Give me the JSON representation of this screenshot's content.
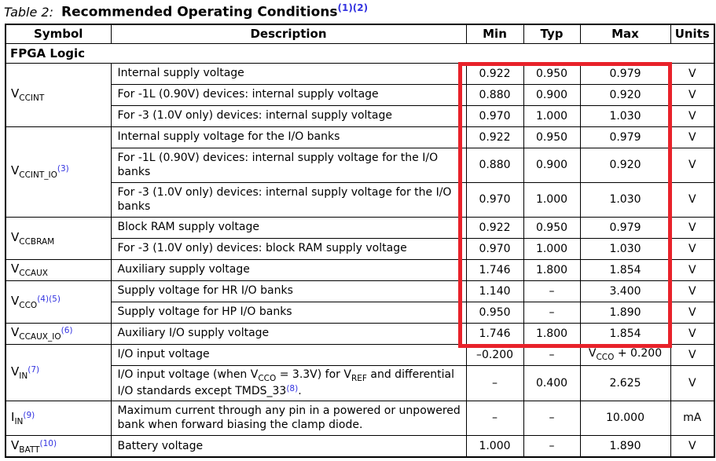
{
  "title": {
    "prefix": "Table 2:",
    "text": "Recommended Operating Conditions",
    "sup": "(1)(2)"
  },
  "colors": {
    "link": "#3333e0",
    "header_rule": "#a50d3f",
    "highlight_box": "#e8222a"
  },
  "annotations": {
    "highlight_box": "red rectangle around Min/Typ/Max values of FPGA supply-voltage rows"
  },
  "table": {
    "headers": [
      "Symbol",
      "Description",
      "Min",
      "Typ",
      "Max",
      "Units"
    ],
    "section_header": "FPGA Logic",
    "groups": [
      {
        "symbol": [
          {
            "t": "V"
          },
          {
            "t": "CCINT",
            "s": "sub"
          }
        ],
        "rows": [
          {
            "desc": [
              {
                "t": "Internal supply voltage"
              }
            ],
            "min": "0.922",
            "typ": "0.950",
            "max": [
              {
                "t": "0.979"
              }
            ],
            "units": "V"
          },
          {
            "desc": [
              {
                "t": "For -1L (0.90V) devices: internal supply voltage"
              }
            ],
            "min": "0.880",
            "typ": "0.900",
            "max": [
              {
                "t": "0.920"
              }
            ],
            "units": "V"
          },
          {
            "desc": [
              {
                "t": "For -3 (1.0V only) devices: internal supply voltage"
              }
            ],
            "min": "0.970",
            "typ": "1.000",
            "max": [
              {
                "t": "1.030"
              }
            ],
            "units": "V"
          }
        ]
      },
      {
        "symbol": [
          {
            "t": "V"
          },
          {
            "t": "CCINT_IO",
            "s": "sub"
          },
          {
            "t": "(3)",
            "s": "sup"
          }
        ],
        "rows": [
          {
            "desc": [
              {
                "t": "Internal supply voltage for the I/O banks"
              }
            ],
            "min": "0.922",
            "typ": "0.950",
            "max": [
              {
                "t": "0.979"
              }
            ],
            "units": "V"
          },
          {
            "desc": [
              {
                "t": "For -1L (0.90V) devices: internal supply voltage for the I/O banks"
              }
            ],
            "min": "0.880",
            "typ": "0.900",
            "max": [
              {
                "t": "0.920"
              }
            ],
            "units": "V"
          },
          {
            "desc": [
              {
                "t": "For -3 (1.0V only) devices: internal supply voltage for the I/O banks"
              }
            ],
            "min": "0.970",
            "typ": "1.000",
            "max": [
              {
                "t": "1.030"
              }
            ],
            "units": "V"
          }
        ]
      },
      {
        "symbol": [
          {
            "t": "V"
          },
          {
            "t": "CCBRAM",
            "s": "sub"
          }
        ],
        "rows": [
          {
            "desc": [
              {
                "t": "Block RAM supply voltage"
              }
            ],
            "min": "0.922",
            "typ": "0.950",
            "max": [
              {
                "t": "0.979"
              }
            ],
            "units": "V"
          },
          {
            "desc": [
              {
                "t": "For -3 (1.0V only) devices: block RAM supply voltage"
              }
            ],
            "min": "0.970",
            "typ": "1.000",
            "max": [
              {
                "t": "1.030"
              }
            ],
            "units": "V"
          }
        ]
      },
      {
        "symbol": [
          {
            "t": "V"
          },
          {
            "t": "CCAUX",
            "s": "sub"
          }
        ],
        "rows": [
          {
            "desc": [
              {
                "t": "Auxiliary supply voltage"
              }
            ],
            "min": "1.746",
            "typ": "1.800",
            "max": [
              {
                "t": "1.854"
              }
            ],
            "units": "V"
          }
        ]
      },
      {
        "symbol": [
          {
            "t": "V"
          },
          {
            "t": "CCO",
            "s": "sub"
          },
          {
            "t": "(4)(5)",
            "s": "sup"
          }
        ],
        "rows": [
          {
            "desc": [
              {
                "t": "Supply voltage for HR I/O banks"
              }
            ],
            "min": "1.140",
            "typ": "–",
            "max": [
              {
                "t": "3.400"
              }
            ],
            "units": "V"
          },
          {
            "desc": [
              {
                "t": "Supply voltage for HP I/O banks"
              }
            ],
            "min": "0.950",
            "typ": "–",
            "max": [
              {
                "t": "1.890"
              }
            ],
            "units": "V"
          }
        ]
      },
      {
        "symbol": [
          {
            "t": "V"
          },
          {
            "t": "CCAUX_IO",
            "s": "sub"
          },
          {
            "t": "(6)",
            "s": "sup"
          }
        ],
        "rows": [
          {
            "desc": [
              {
                "t": "Auxiliary I/O supply voltage"
              }
            ],
            "min": "1.746",
            "typ": "1.800",
            "max": [
              {
                "t": "1.854"
              }
            ],
            "units": "V"
          }
        ]
      },
      {
        "symbol": [
          {
            "t": "V"
          },
          {
            "t": "IN",
            "s": "sub"
          },
          {
            "t": "(7)",
            "s": "sup"
          }
        ],
        "rows": [
          {
            "desc": [
              {
                "t": "I/O input voltage"
              }
            ],
            "min": "–0.200",
            "typ": "–",
            "max": [
              {
                "t": "V"
              },
              {
                "t": "CCO",
                "s": "sub"
              },
              {
                "t": " + 0.200"
              }
            ],
            "units": "V"
          },
          {
            "desc": [
              {
                "t": "I/O input voltage (when V"
              },
              {
                "t": "CCO",
                "s": "sub"
              },
              {
                "t": " = 3.3V) for V"
              },
              {
                "t": "REF",
                "s": "sub"
              },
              {
                "t": " and differential I/O standards except TMDS_33"
              },
              {
                "t": "(8)",
                "s": "sup"
              },
              {
                "t": "."
              }
            ],
            "min": "–",
            "typ": "0.400",
            "max": [
              {
                "t": "2.625"
              }
            ],
            "units": "V"
          }
        ]
      },
      {
        "symbol": [
          {
            "t": "I"
          },
          {
            "t": "IN",
            "s": "sub"
          },
          {
            "t": "(9)",
            "s": "sup"
          }
        ],
        "rows": [
          {
            "desc": [
              {
                "t": "Maximum current through any pin in a powered or unpowered bank when forward biasing the clamp diode."
              }
            ],
            "min": "–",
            "typ": "–",
            "max": [
              {
                "t": "10.000"
              }
            ],
            "units": "mA"
          }
        ]
      },
      {
        "symbol": [
          {
            "t": "V"
          },
          {
            "t": "BATT",
            "s": "sub"
          },
          {
            "t": "(10)",
            "s": "sup"
          }
        ],
        "rows": [
          {
            "desc": [
              {
                "t": "Battery voltage"
              }
            ],
            "min": "1.000",
            "typ": "–",
            "max": [
              {
                "t": "1.890"
              }
            ],
            "units": "V"
          }
        ]
      }
    ]
  }
}
